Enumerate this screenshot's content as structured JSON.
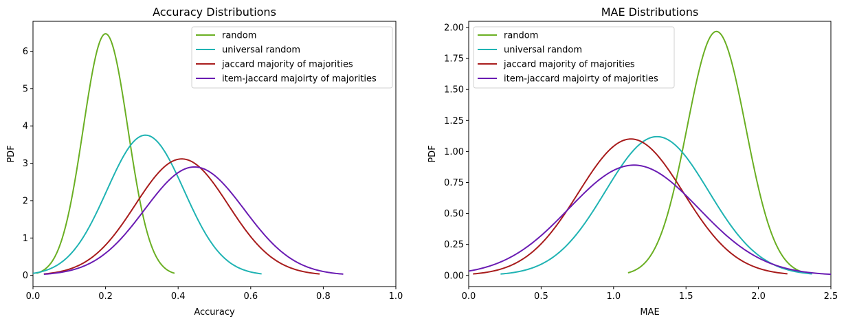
{
  "chart_data": [
    {
      "type": "line",
      "title": "Accuracy Distributions",
      "xlabel": "Accuracy",
      "ylabel": "PDF",
      "xlim": [
        0,
        1
      ],
      "ylim": [
        -0.3,
        6.8
      ],
      "xticks": [
        0,
        0.2,
        0.4,
        0.6,
        0.8,
        1
      ],
      "xtick_labels": [
        "0.0",
        "0.2",
        "0.4",
        "0.6",
        "0.8",
        "1.0"
      ],
      "yticks": [
        0,
        1,
        2,
        3,
        4,
        5,
        6
      ],
      "ytick_labels": [
        "0",
        "1",
        "2",
        "3",
        "4",
        "5",
        "6"
      ],
      "grid": false,
      "legend_position": "top-right",
      "series": [
        {
          "name": "random",
          "color": "#6aaf23",
          "distribution": "normal",
          "mean": 0.2,
          "std": 0.0617,
          "x_range": [
            0.01,
            0.39
          ]
        },
        {
          "name": "universal random",
          "color": "#1fb3b3",
          "distribution": "normal",
          "mean": 0.31,
          "std": 0.1063,
          "x_range": [
            0.0,
            0.63
          ]
        },
        {
          "name": "jaccard majority of majorities",
          "color": "#a81c1c",
          "distribution": "normal",
          "mean": 0.41,
          "std": 0.128,
          "x_range": [
            0.03,
            0.79
          ]
        },
        {
          "name": "item-jaccard majoirty of majorities",
          "color": "#6a1cb3",
          "distribution": "normal",
          "mean": 0.445,
          "std": 0.1375,
          "x_range": [
            0.03,
            0.855
          ]
        }
      ]
    },
    {
      "type": "line",
      "title": "MAE Distributions",
      "xlabel": "MAE",
      "ylabel": "PDF",
      "xlim": [
        0,
        2.5
      ],
      "ylim": [
        -0.09,
        2.05
      ],
      "xticks": [
        0,
        0.5,
        1,
        1.5,
        2,
        2.5
      ],
      "xtick_labels": [
        "0.0",
        "0.5",
        "1.0",
        "1.5",
        "2.0",
        "2.5"
      ],
      "yticks": [
        0,
        0.25,
        0.5,
        0.75,
        1,
        1.25,
        1.5,
        1.75,
        2
      ],
      "ytick_labels": [
        "0.00",
        "0.25",
        "0.50",
        "0.75",
        "1.00",
        "1.25",
        "1.50",
        "1.75",
        "2.00"
      ],
      "grid": false,
      "legend_position": "top-left",
      "series": [
        {
          "name": "random",
          "color": "#6aaf23",
          "distribution": "normal",
          "mean": 1.71,
          "std": 0.2027,
          "x_range": [
            1.1,
            2.33
          ]
        },
        {
          "name": "universal random",
          "color": "#1fb3b3",
          "distribution": "normal",
          "mean": 1.3,
          "std": 0.3563,
          "x_range": [
            0.22,
            2.37
          ]
        },
        {
          "name": "jaccard majority of majorities",
          "color": "#a81c1c",
          "distribution": "normal",
          "mean": 1.12,
          "std": 0.3625,
          "x_range": [
            0.03,
            2.2
          ]
        },
        {
          "name": "item-jaccard majoirty of majorities",
          "color": "#6a1cb3",
          "distribution": "normal",
          "mean": 1.14,
          "std": 0.4484,
          "x_range": [
            0.0,
            2.5
          ]
        }
      ]
    }
  ]
}
